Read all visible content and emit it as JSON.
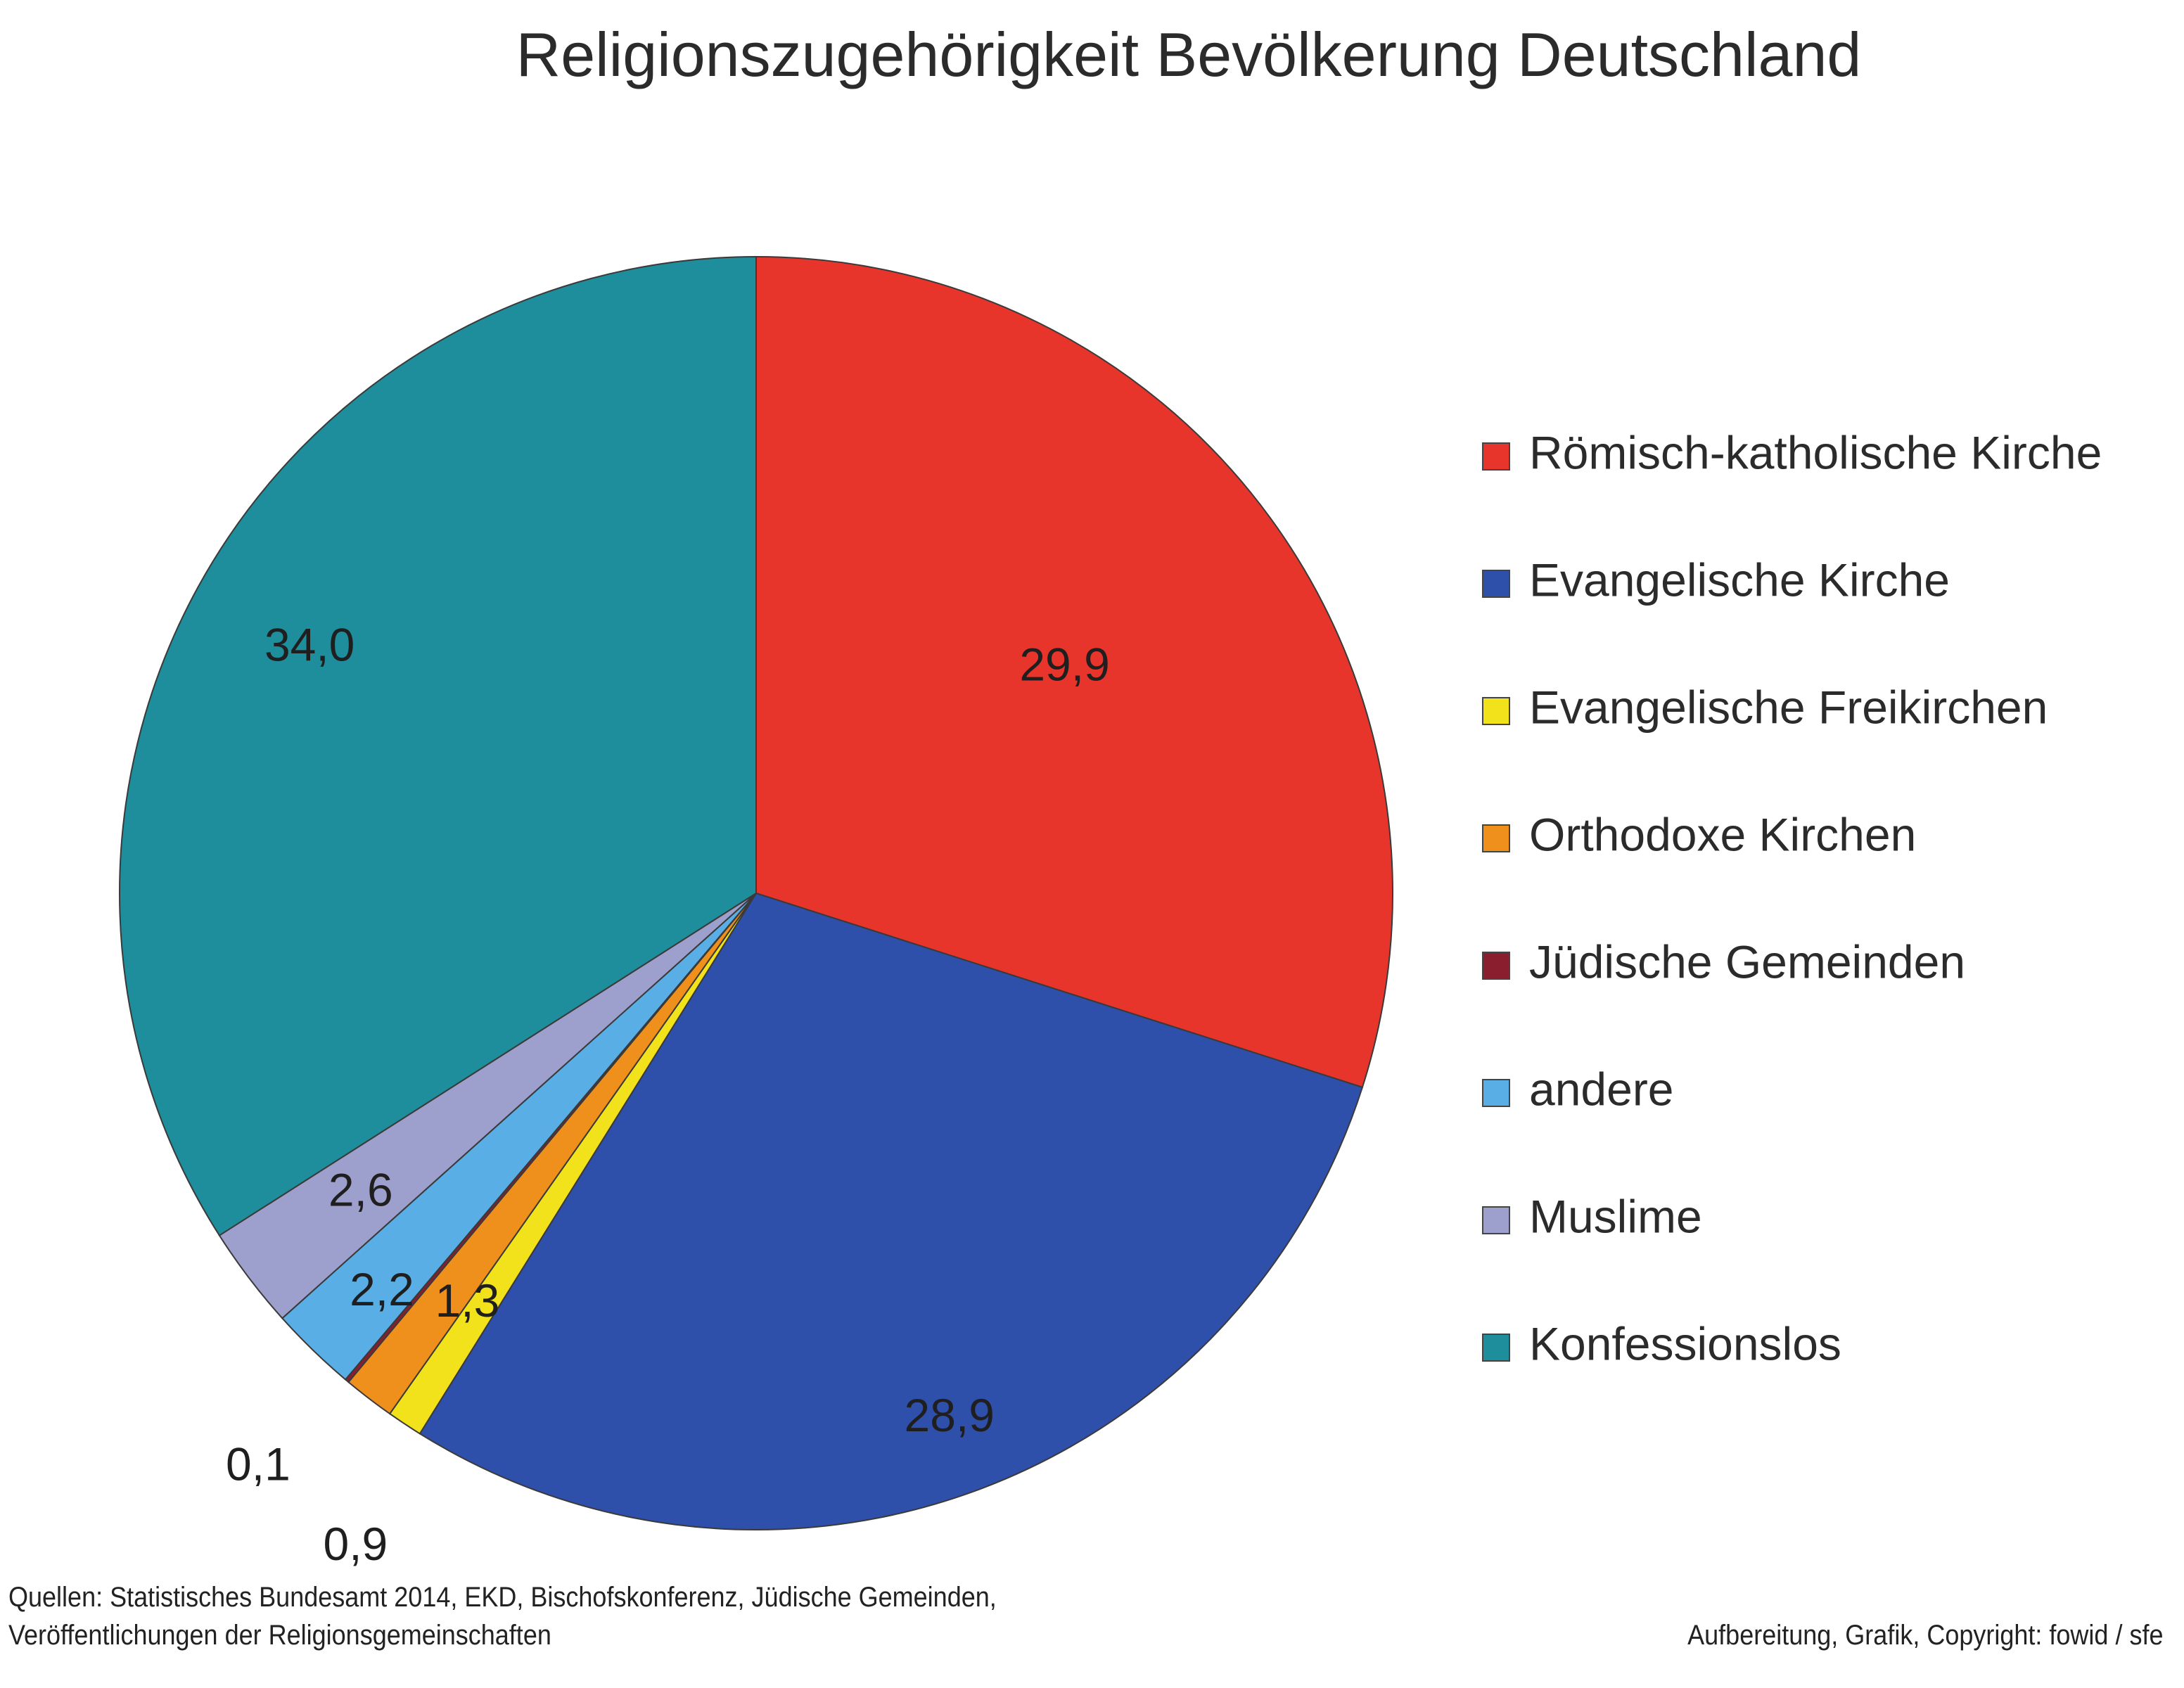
{
  "chart_data": {
    "type": "pie",
    "title": "Religionszugehörigkeit Bevölkerung Deutschland",
    "categories": [
      "Römisch-katholische Kirche",
      "Evangelische Kirche",
      "Evangelische Freikirchen",
      "Orthodoxe Kirchen",
      "Jüdische Gemeinden",
      "andere",
      "Muslime",
      "Konfessionslos"
    ],
    "values": [
      29.9,
      28.9,
      0.9,
      1.3,
      0.1,
      2.2,
      2.6,
      34.0
    ],
    "value_labels": [
      "29,9",
      "28,9",
      "0,9",
      "1,3",
      "0,1",
      "2,2",
      "2,6",
      "34,0"
    ],
    "colors": [
      "#e8352c",
      "#2e4faa",
      "#f2e21c",
      "#f0901c",
      "#8a1e2e",
      "#5aaee6",
      "#9d9fcc",
      "#1e8d9c"
    ],
    "start_angle_deg": 0,
    "direction": "clockwise",
    "legend_position": "right",
    "grid": false
  },
  "footer": {
    "sources_line1": "Quellen: Statistisches Bundesamt 2014, EKD, Bischofskonferenz, Jüdische Gemeinden,",
    "sources_line2": "Veröffentlichungen der Religionsgemeinschaften",
    "copyright": "Aufbereitung, Grafik, Copyright: fowid / sfe"
  }
}
